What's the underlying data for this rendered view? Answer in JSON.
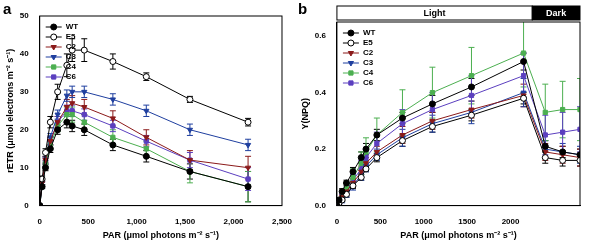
{
  "chart_data": [
    {
      "type": "line",
      "panel": "a",
      "x_label": "PAR (μmol photons m⁻² s⁻¹)",
      "y_label": "rETR (μmol electrons m⁻² s⁻¹)",
      "x": [
        0,
        25,
        60,
        110,
        185,
        280,
        335,
        460,
        755,
        1100,
        1550,
        2150
      ],
      "xlim": [
        0,
        2500
      ],
      "xticks": [
        0,
        500,
        {
          "value": 1000,
          "label": "1,000"
        },
        {
          "value": 1500,
          "label": "1,500"
        },
        {
          "value": 2000,
          "label": "2,000"
        },
        {
          "value": 2500,
          "label": "2,500"
        }
      ],
      "ylim": [
        0,
        50
      ],
      "yticks": [
        0,
        10,
        20,
        30,
        40,
        50
      ],
      "grid": false,
      "legend": "upper left",
      "series": [
        {
          "name": "WT",
          "color": "#000000",
          "marker": "circle",
          "values": [
            0,
            5,
            10,
            15,
            20,
            22,
            21,
            20,
            16,
            13,
            9,
            5
          ],
          "errors": [
            0,
            0.5,
            0.8,
            1,
            1.2,
            1.5,
            1.5,
            1.5,
            1.5,
            1.5,
            2,
            4
          ]
        },
        {
          "name": "E5",
          "color": "#000000",
          "marker": "open-circle",
          "values": [
            0,
            7,
            14,
            22,
            30,
            37,
            41,
            41,
            38,
            34,
            28,
            22
          ],
          "errors": [
            0,
            0.8,
            1,
            1.5,
            2,
            3,
            3,
            3,
            2,
            1,
            0.8,
            1
          ]
        },
        {
          "name": "C2",
          "color": "#8b1a1a",
          "marker": "triangle-down",
          "values": [
            0,
            6,
            12,
            17,
            22,
            26,
            27,
            26,
            23,
            18,
            12,
            10
          ],
          "errors": [
            0,
            0.5,
            0.8,
            1,
            1.5,
            2,
            2,
            2,
            2,
            2,
            2.5,
            3
          ]
        },
        {
          "name": "C3",
          "color": "#1f3f9f",
          "marker": "triangle-down",
          "values": [
            0,
            6,
            12,
            18,
            24,
            29,
            30,
            30,
            28,
            25,
            20,
            16
          ],
          "errors": [
            0,
            0.5,
            0.8,
            1,
            1.2,
            1.5,
            1.5,
            1.5,
            1.5,
            1.5,
            1.5,
            1.5
          ]
        },
        {
          "name": "C4",
          "color": "#4caf50",
          "marker": "square",
          "values": [
            0,
            5,
            11,
            16,
            21,
            24,
            24,
            22,
            18,
            15,
            9,
            5
          ],
          "errors": [
            0,
            0.5,
            0.8,
            1,
            1.5,
            2,
            2,
            2,
            2,
            2,
            3,
            4
          ]
        },
        {
          "name": "C6",
          "color": "#5b3fbf",
          "marker": "square",
          "values": [
            0,
            5,
            11,
            17,
            22,
            25,
            25,
            24,
            21,
            17,
            12,
            7
          ],
          "errors": [
            0,
            0.5,
            0.8,
            1,
            1.5,
            1.5,
            1.5,
            1.5,
            1.5,
            1.5,
            2,
            3
          ]
        }
      ]
    },
    {
      "type": "line",
      "panel": "b",
      "x_label": "PAR (μmol photons m⁻² s⁻¹)",
      "y_label": "Y(NPQ)",
      "x": [
        0,
        25,
        60,
        110,
        185,
        280,
        335,
        460,
        755,
        1100,
        1550,
        2150,
        2400,
        2600,
        2800
      ],
      "xlim": [
        0,
        2800
      ],
      "xticks": [
        0,
        500,
        1000,
        1500,
        2000
      ],
      "ylim": [
        0,
        0.65
      ],
      "yticks": [
        {
          "value": 0,
          "label": "0.0"
        },
        {
          "value": 0.2,
          "label": "0.2"
        },
        {
          "value": 0.4,
          "label": "0.4"
        },
        {
          "value": 0.6,
          "label": "0.6"
        }
      ],
      "grid": false,
      "legend": "upper left",
      "bands": [
        {
          "label": "Light",
          "from": 0,
          "to": 2250,
          "color": "#ffffff"
        },
        {
          "label": "Dark",
          "from": 2250,
          "to": 2800,
          "color": "#000000"
        }
      ],
      "series": [
        {
          "name": "WT",
          "color": "#000000",
          "marker": "circle",
          "values": [
            0,
            0.02,
            0.05,
            0.08,
            0.12,
            0.17,
            0.2,
            0.25,
            0.31,
            0.36,
            0.42,
            0.51,
            0.21,
            0.19,
            0.18
          ],
          "errors": [
            0,
            0.005,
            0.01,
            0.01,
            0.015,
            0.02,
            0.02,
            0.02,
            0.02,
            0.03,
            0.03,
            0.03,
            0.02,
            0.02,
            0.02
          ]
        },
        {
          "name": "E5",
          "color": "#000000",
          "marker": "open-circle",
          "values": [
            0,
            0.01,
            0.02,
            0.04,
            0.07,
            0.1,
            0.13,
            0.17,
            0.23,
            0.28,
            0.32,
            0.38,
            0.17,
            0.16,
            0.16
          ],
          "errors": [
            0,
            0.005,
            0.005,
            0.01,
            0.01,
            0.01,
            0.01,
            0.015,
            0.02,
            0.02,
            0.02,
            0.02,
            0.02,
            0.02,
            0.02
          ]
        },
        {
          "name": "C2",
          "color": "#8b1a1a",
          "marker": "triangle-down",
          "values": [
            0,
            0.01,
            0.03,
            0.05,
            0.08,
            0.12,
            0.15,
            0.19,
            0.25,
            0.3,
            0.34,
            0.39,
            0.19,
            0.18,
            0.17
          ],
          "errors": [
            0,
            0.005,
            0.01,
            0.01,
            0.015,
            0.02,
            0.02,
            0.02,
            0.03,
            0.03,
            0.03,
            0.04,
            0.03,
            0.03,
            0.03
          ]
        },
        {
          "name": "C3",
          "color": "#1f3f9f",
          "marker": "triangle-down",
          "values": [
            0,
            0.01,
            0.02,
            0.04,
            0.07,
            0.11,
            0.14,
            0.18,
            0.24,
            0.29,
            0.33,
            0.4,
            0.2,
            0.19,
            0.18
          ],
          "errors": [
            0,
            0.005,
            0.01,
            0.01,
            0.015,
            0.02,
            0.02,
            0.02,
            0.03,
            0.03,
            0.04,
            0.05,
            0.03,
            0.03,
            0.03
          ]
        },
        {
          "name": "C4",
          "color": "#4caf50",
          "marker": "square",
          "values": [
            0,
            0.01,
            0.03,
            0.06,
            0.1,
            0.15,
            0.19,
            0.25,
            0.33,
            0.4,
            0.46,
            0.54,
            0.33,
            0.34,
            0.34
          ],
          "errors": [
            0,
            0.01,
            0.015,
            0.02,
            0.03,
            0.04,
            0.05,
            0.06,
            0.08,
            0.09,
            0.1,
            0.12,
            0.1,
            0.1,
            0.11
          ]
        },
        {
          "name": "C6",
          "color": "#5b3fbf",
          "marker": "square",
          "values": [
            0,
            0.01,
            0.03,
            0.05,
            0.09,
            0.13,
            0.17,
            0.22,
            0.29,
            0.34,
            0.39,
            0.46,
            0.25,
            0.26,
            0.27
          ],
          "errors": [
            0,
            0.005,
            0.01,
            0.015,
            0.02,
            0.03,
            0.03,
            0.04,
            0.05,
            0.06,
            0.07,
            0.08,
            0.07,
            0.07,
            0.08
          ]
        }
      ]
    }
  ]
}
